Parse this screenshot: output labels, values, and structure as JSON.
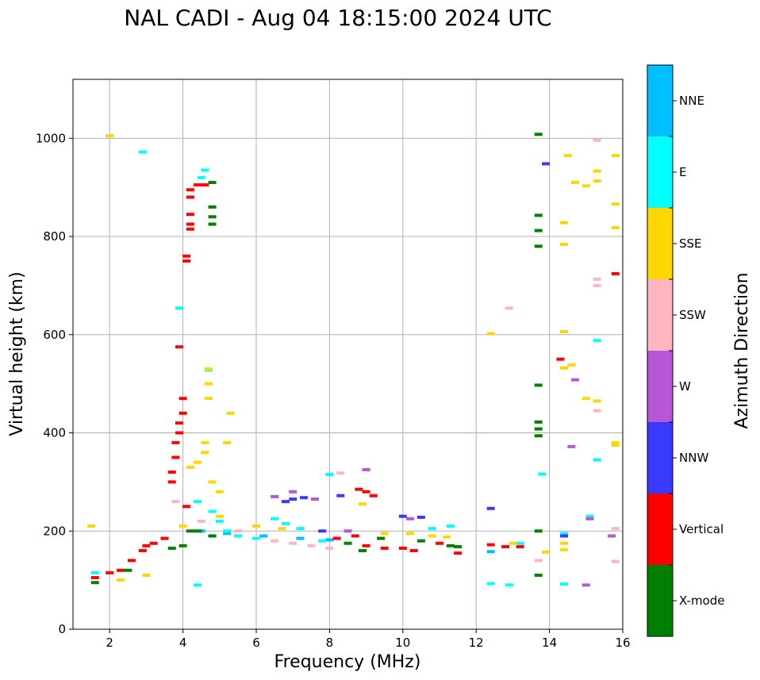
{
  "chart_data": {
    "type": "scatter",
    "title": "NAL CADI - Aug 04 18:15:00 2024 UTC",
    "xlabel": "Frequency (MHz)",
    "ylabel": "Virtual height (km)",
    "xlim": [
      1,
      16
    ],
    "ylim": [
      0,
      1120
    ],
    "xticks": [
      2,
      4,
      6,
      8,
      10,
      12,
      14,
      16
    ],
    "yticks": [
      0,
      200,
      400,
      600,
      800,
      1000
    ],
    "grid": true,
    "colorbar": {
      "title": "Azimuth Direction",
      "categories": [
        {
          "name": "X-mode",
          "color": "#008000"
        },
        {
          "name": "Vertical",
          "color": "#ff0000"
        },
        {
          "name": "NNW",
          "color": "#3a3aff"
        },
        {
          "name": "W",
          "color": "#b657d6"
        },
        {
          "name": "SSW",
          "color": "#ffb6c1"
        },
        {
          "name": "SSE",
          "color": "#ffd700"
        },
        {
          "name": "E",
          "color": "#00ffff"
        },
        {
          "name": "NNE",
          "color": "#00bfff"
        }
      ]
    },
    "series": [
      {
        "name": "X-mode",
        "points": [
          [
            1.6,
            95
          ],
          [
            2.5,
            120
          ],
          [
            3.7,
            165
          ],
          [
            4.0,
            170
          ],
          [
            4.2,
            200
          ],
          [
            4.4,
            200
          ],
          [
            4.8,
            190
          ],
          [
            4.8,
            840
          ],
          [
            4.8,
            825
          ],
          [
            4.8,
            860
          ],
          [
            4.8,
            910
          ],
          [
            8.5,
            175
          ],
          [
            8.9,
            160
          ],
          [
            9.4,
            185
          ],
          [
            10.5,
            180
          ],
          [
            11.3,
            170
          ],
          [
            11.5,
            168
          ],
          [
            13.7,
            1008
          ],
          [
            13.7,
            843
          ],
          [
            13.7,
            812
          ],
          [
            13.7,
            780
          ],
          [
            13.7,
            497
          ],
          [
            13.7,
            422
          ],
          [
            13.7,
            408
          ],
          [
            13.7,
            394
          ],
          [
            13.7,
            200
          ],
          [
            13.7,
            110
          ]
        ]
      },
      {
        "name": "Vertical",
        "points": [
          [
            1.6,
            105
          ],
          [
            2.0,
            115
          ],
          [
            2.3,
            120
          ],
          [
            2.6,
            140
          ],
          [
            2.9,
            160
          ],
          [
            3.0,
            170
          ],
          [
            3.2,
            175
          ],
          [
            3.5,
            185
          ],
          [
            3.7,
            300
          ],
          [
            3.7,
            320
          ],
          [
            3.8,
            350
          ],
          [
            3.8,
            380
          ],
          [
            3.9,
            400
          ],
          [
            3.9,
            420
          ],
          [
            4.0,
            440
          ],
          [
            4.0,
            470
          ],
          [
            3.9,
            575
          ],
          [
            4.2,
            895
          ],
          [
            4.2,
            880
          ],
          [
            4.2,
            845
          ],
          [
            4.2,
            825
          ],
          [
            4.2,
            815
          ],
          [
            4.1,
            760
          ],
          [
            4.1,
            750
          ],
          [
            4.4,
            905
          ],
          [
            4.6,
            905
          ],
          [
            4.1,
            250
          ],
          [
            8.2,
            185
          ],
          [
            8.7,
            190
          ],
          [
            8.8,
            285
          ],
          [
            9.0,
            280
          ],
          [
            9.2,
            272
          ],
          [
            9.0,
            170
          ],
          [
            9.5,
            165
          ],
          [
            10.0,
            165
          ],
          [
            10.3,
            160
          ],
          [
            11.0,
            175
          ],
          [
            11.5,
            155
          ],
          [
            12.4,
            172
          ],
          [
            12.8,
            168
          ],
          [
            13.2,
            168
          ],
          [
            14.3,
            550
          ],
          [
            15.8,
            724
          ]
        ]
      },
      {
        "name": "NNW",
        "points": [
          [
            6.8,
            260
          ],
          [
            7.0,
            265
          ],
          [
            7.3,
            268
          ],
          [
            7.8,
            200
          ],
          [
            8.3,
            272
          ],
          [
            10.0,
            230
          ],
          [
            10.5,
            228
          ],
          [
            12.4,
            246
          ],
          [
            13.9,
            948
          ],
          [
            14.4,
            190
          ]
        ]
      },
      {
        "name": "W",
        "points": [
          [
            6.5,
            270
          ],
          [
            7.0,
            280
          ],
          [
            7.6,
            265
          ],
          [
            8.5,
            200
          ],
          [
            9.0,
            325
          ],
          [
            10.2,
            225
          ],
          [
            14.6,
            372
          ],
          [
            14.7,
            508
          ],
          [
            15.0,
            90
          ],
          [
            15.7,
            190
          ],
          [
            15.1,
            225
          ]
        ]
      },
      {
        "name": "SSW",
        "points": [
          [
            3.8,
            260
          ],
          [
            4.5,
            220
          ],
          [
            5.5,
            200
          ],
          [
            6.5,
            180
          ],
          [
            7.0,
            175
          ],
          [
            7.5,
            170
          ],
          [
            8.0,
            165
          ],
          [
            8.3,
            318
          ],
          [
            12.9,
            654
          ],
          [
            13.7,
            140
          ],
          [
            15.3,
            996
          ],
          [
            15.3,
            713
          ],
          [
            15.3,
            700
          ],
          [
            15.3,
            445
          ],
          [
            15.8,
            205
          ],
          [
            15.8,
            138
          ]
        ]
      },
      {
        "name": "SSE",
        "points": [
          [
            1.5,
            210
          ],
          [
            2.0,
            1005
          ],
          [
            2.3,
            100
          ],
          [
            3.0,
            110
          ],
          [
            4.0,
            210
          ],
          [
            4.2,
            330
          ],
          [
            4.4,
            340
          ],
          [
            4.6,
            360
          ],
          [
            4.6,
            380
          ],
          [
            4.7,
            470
          ],
          [
            4.7,
            500
          ],
          [
            4.7,
            530
          ],
          [
            4.8,
            300
          ],
          [
            5.0,
            280
          ],
          [
            5.2,
            380
          ],
          [
            5.3,
            440
          ],
          [
            5.0,
            230
          ],
          [
            6.0,
            210
          ],
          [
            6.7,
            205
          ],
          [
            8.9,
            255
          ],
          [
            9.5,
            195
          ],
          [
            10.2,
            195
          ],
          [
            10.8,
            190
          ],
          [
            11.2,
            188
          ],
          [
            12.4,
            602
          ],
          [
            13.0,
            175
          ],
          [
            14.5,
            965
          ],
          [
            14.4,
            828
          ],
          [
            14.4,
            784
          ],
          [
            14.4,
            606
          ],
          [
            14.4,
            532
          ],
          [
            14.6,
            538
          ],
          [
            14.7,
            910
          ],
          [
            15.0,
            903
          ],
          [
            15.0,
            470
          ],
          [
            15.3,
            933
          ],
          [
            15.3,
            913
          ],
          [
            15.3,
            465
          ],
          [
            15.8,
            965
          ],
          [
            15.8,
            866
          ],
          [
            15.8,
            818
          ],
          [
            15.8,
            380
          ],
          [
            15.8,
            375
          ],
          [
            14.4,
            175
          ],
          [
            14.4,
            162
          ],
          [
            13.9,
            157
          ]
        ]
      },
      {
        "name": "E",
        "points": [
          [
            1.6,
            115
          ],
          [
            2.9,
            972
          ],
          [
            3.9,
            654
          ],
          [
            4.4,
            90
          ],
          [
            4.5,
            920
          ],
          [
            4.6,
            935
          ],
          [
            4.7,
            528
          ],
          [
            4.4,
            260
          ],
          [
            4.8,
            240
          ],
          [
            5.0,
            220
          ],
          [
            5.2,
            200
          ],
          [
            5.5,
            190
          ],
          [
            6.0,
            185
          ],
          [
            6.5,
            225
          ],
          [
            6.8,
            215
          ],
          [
            7.2,
            205
          ],
          [
            7.8,
            180
          ],
          [
            8.0,
            315
          ],
          [
            10.8,
            205
          ],
          [
            11.3,
            210
          ],
          [
            12.4,
            93
          ],
          [
            12.9,
            90
          ],
          [
            13.2,
            175
          ],
          [
            13.8,
            316
          ],
          [
            14.4,
            92
          ],
          [
            14.4,
            195
          ],
          [
            15.3,
            588
          ],
          [
            15.3,
            345
          ],
          [
            15.1,
            230
          ]
        ]
      },
      {
        "name": "NNE",
        "points": [
          [
            4.5,
            200
          ],
          [
            5.2,
            195
          ],
          [
            6.2,
            190
          ],
          [
            7.2,
            185
          ],
          [
            8.0,
            182
          ],
          [
            12.4,
            158
          ]
        ]
      }
    ]
  }
}
